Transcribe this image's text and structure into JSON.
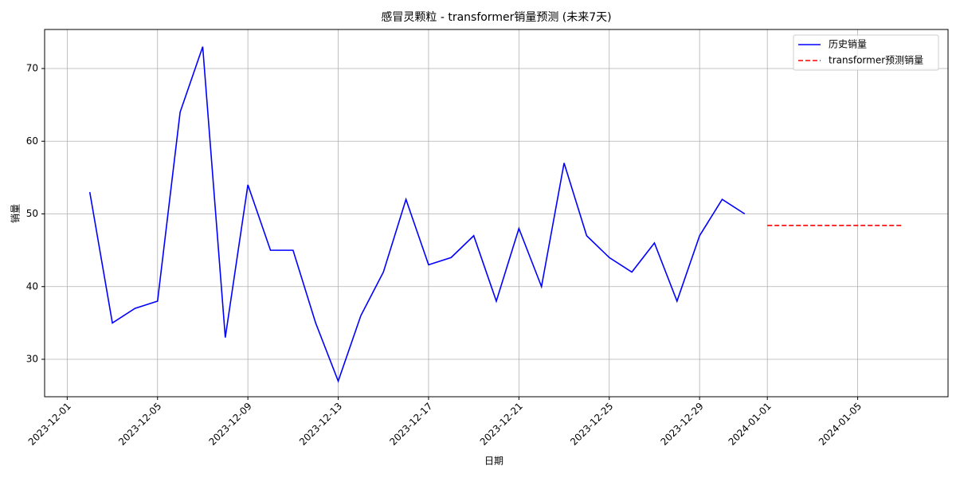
{
  "chart_data": {
    "type": "line",
    "title": "感冒灵颗粒 - transformer销量预测 (未来7天)",
    "x_label": "日期",
    "y_label": "销量",
    "series": [
      {
        "name": "历史销量",
        "color": "#0000ff",
        "dash": "solid",
        "x": [
          "2023-12-02",
          "2023-12-03",
          "2023-12-04",
          "2023-12-05",
          "2023-12-06",
          "2023-12-07",
          "2023-12-08",
          "2023-12-09",
          "2023-12-10",
          "2023-12-11",
          "2023-12-12",
          "2023-12-13",
          "2023-12-14",
          "2023-12-15",
          "2023-12-16",
          "2023-12-17",
          "2023-12-18",
          "2023-12-19",
          "2023-12-20",
          "2023-12-21",
          "2023-12-22",
          "2023-12-23",
          "2023-12-24",
          "2023-12-25",
          "2023-12-26",
          "2023-12-27",
          "2023-12-28",
          "2023-12-29",
          "2023-12-30",
          "2023-12-31"
        ],
        "values": [
          53,
          35,
          37,
          38,
          64,
          73,
          33,
          54,
          45,
          45,
          35,
          27,
          36,
          42,
          52,
          43,
          44,
          47,
          38,
          48,
          40,
          57,
          47,
          44,
          42,
          46,
          38,
          47,
          52,
          50
        ]
      },
      {
        "name": "transformer预测销量",
        "color": "#ff0000",
        "dash": "dashed",
        "x": [
          "2024-01-01",
          "2024-01-02",
          "2024-01-03",
          "2024-01-04",
          "2024-01-05",
          "2024-01-06",
          "2024-01-07"
        ],
        "values": [
          48.4,
          48.4,
          48.4,
          48.4,
          48.4,
          48.4,
          48.4
        ]
      }
    ],
    "xlim": [
      "2023-11-30",
      "2024-01-09"
    ],
    "xticks": [
      "2023-12-01",
      "2023-12-05",
      "2023-12-09",
      "2023-12-13",
      "2023-12-17",
      "2023-12-21",
      "2023-12-25",
      "2023-12-29",
      "2024-01-01",
      "2024-01-05"
    ],
    "ylim": [
      24.85,
      75.37
    ],
    "yticks": [
      30,
      40,
      50,
      60,
      70
    ],
    "grid": true,
    "legend": "upper right"
  }
}
